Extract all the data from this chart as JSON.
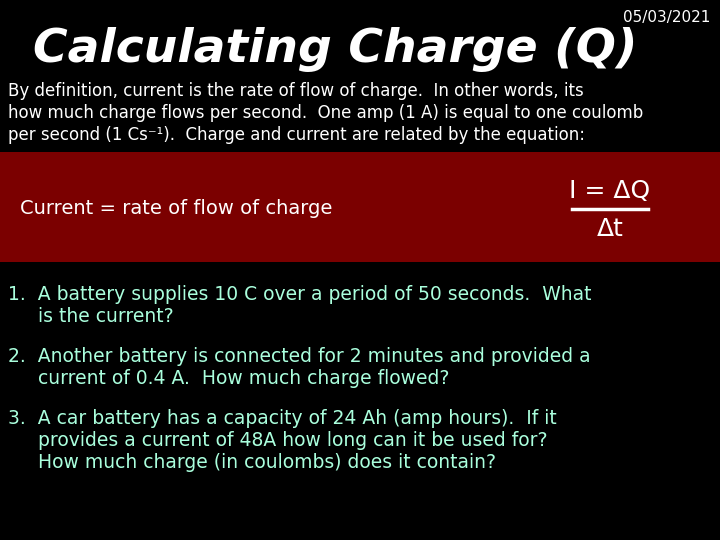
{
  "title": "Calculating Charge (Q)",
  "date": "05/03/2021",
  "bg_color": "#000000",
  "dark_red_color": "#7B0000",
  "title_color": "#FFFFFF",
  "date_color": "#FFFFFF",
  "white_color": "#FFFFFF",
  "cyan_color": "#AAFFDD",
  "intro_lines": [
    "By definition, current is the rate of flow of charge.  In other words, its",
    "how much charge flows per second.  One amp (1 A) is equal to one coulomb",
    "per second (1 Cs⁻¹).  Charge and current are related by the equation:"
  ],
  "equation_left": "Current = rate of flow of charge",
  "equation_right_num": "I = ΔQ",
  "equation_right_den": "Δt",
  "q1_line1": "1.  A battery supplies 10 C over a period of 50 seconds.  What",
  "q1_line2": "     is the current?",
  "q2_line1": "2.  Another battery is connected for 2 minutes and provided a",
  "q2_line2": "     current of 0.4 A.  How much charge flowed?",
  "q3_line1": "3.  A car battery has a capacity of 24 Ah (amp hours).  If it",
  "q3_line2": "     provides a current of 48A how long can it be used for?",
  "q3_line3": "     How much charge (in coulombs) does it contain?"
}
